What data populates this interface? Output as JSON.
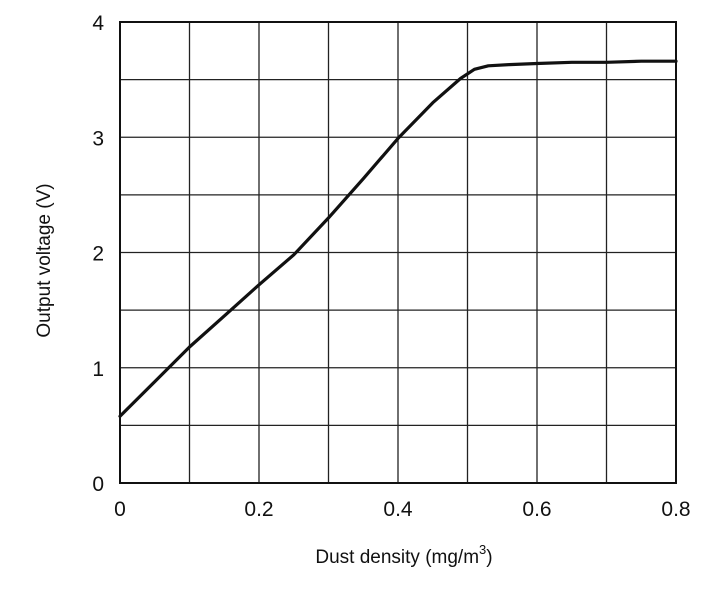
{
  "chart_data": {
    "type": "line",
    "title": "",
    "xlabel": "Dust density (mg/m",
    "xlabel_superscript": "3",
    "xlabel_suffix": ")",
    "ylabel": "Output voltage (V)",
    "xlim": [
      0,
      0.8
    ],
    "ylim": [
      0,
      4
    ],
    "x_ticks": [
      0,
      0.2,
      0.4,
      0.6,
      0.8
    ],
    "x_tick_labels": [
      "0",
      "0.2",
      "0.4",
      "0.6",
      "0.8"
    ],
    "y_ticks": [
      0,
      1,
      2,
      3,
      4
    ],
    "y_tick_labels": [
      "0",
      "1",
      "2",
      "3",
      "4"
    ],
    "x_grid_step": 0.1,
    "y_grid_step": 0.5,
    "grid": true,
    "series": [
      {
        "x": [
          0,
          0.05,
          0.1,
          0.15,
          0.2,
          0.25,
          0.3,
          0.35,
          0.4,
          0.45,
          0.49,
          0.51,
          0.53,
          0.56,
          0.6,
          0.65,
          0.7,
          0.75,
          0.8
        ],
        "y": [
          0.58,
          0.88,
          1.18,
          1.45,
          1.72,
          1.98,
          2.3,
          2.64,
          2.99,
          3.3,
          3.51,
          3.59,
          3.62,
          3.63,
          3.64,
          3.65,
          3.65,
          3.66,
          3.66
        ],
        "color": "#111111"
      }
    ]
  }
}
